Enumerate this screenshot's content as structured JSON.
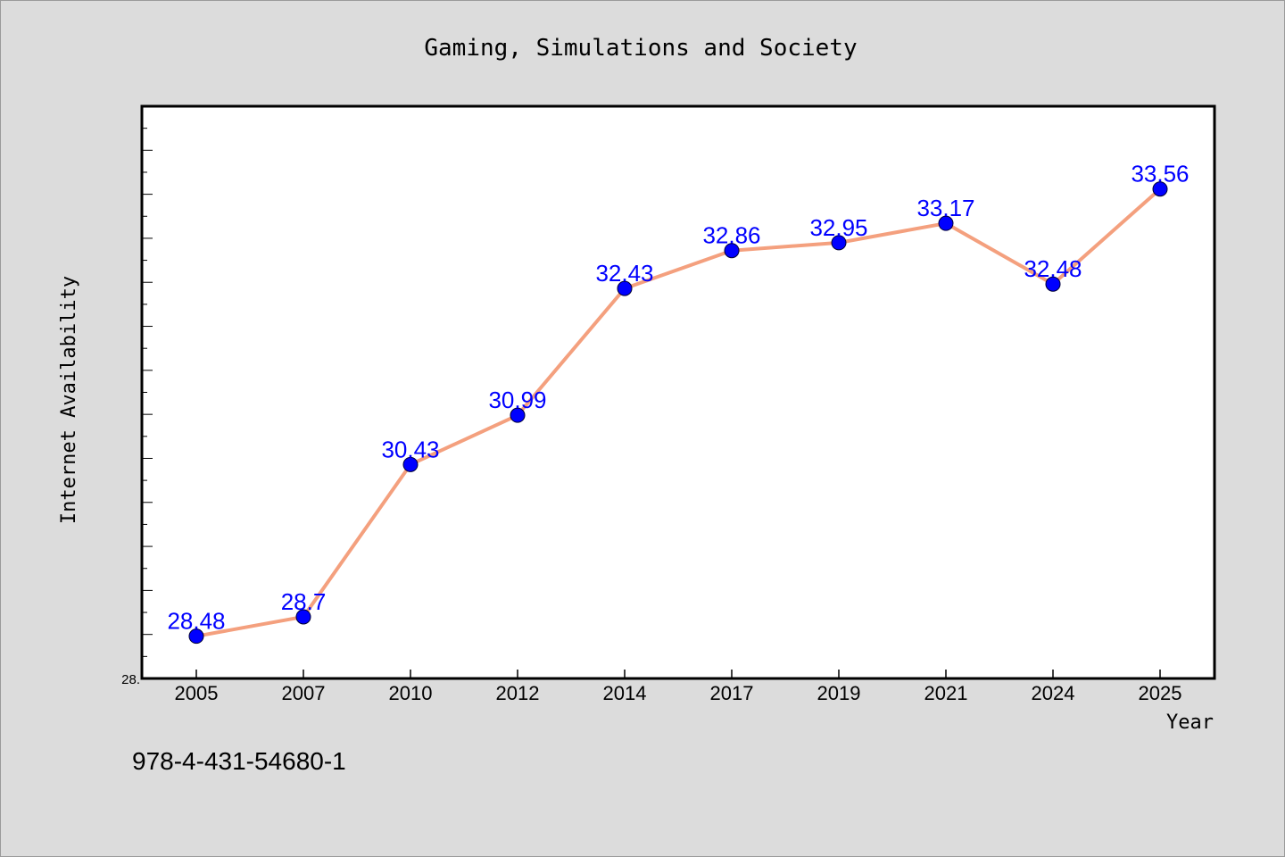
{
  "chart_data": {
    "type": "line",
    "title": "Gaming, Simulations and Society",
    "xlabel": "Year",
    "ylabel": "Internet Availability",
    "categories": [
      "2005",
      "2007",
      "2010",
      "2012",
      "2014",
      "2017",
      "2019",
      "2021",
      "2024",
      "2025"
    ],
    "series": [
      {
        "values": [
          28.48,
          28.7,
          30.43,
          30.99,
          32.43,
          32.86,
          32.95,
          33.17,
          32.48,
          33.56
        ]
      }
    ],
    "data_labels": [
      "28.48",
      "28.7",
      "30.43",
      "30.99",
      "32.43",
      "32.86",
      "32.95",
      "33.17",
      "32.48",
      "33.56"
    ],
    "ylim": [
      28.0,
      34.5
    ],
    "y_tick_labels": [
      "28."
    ],
    "y_minor_tick_step": 0.5,
    "grid": false,
    "line_color": "#f4a07e",
    "marker_color": "#0000ff",
    "label_color": "#0000ff"
  },
  "footer": {
    "text": "978-4-431-54680-1"
  }
}
